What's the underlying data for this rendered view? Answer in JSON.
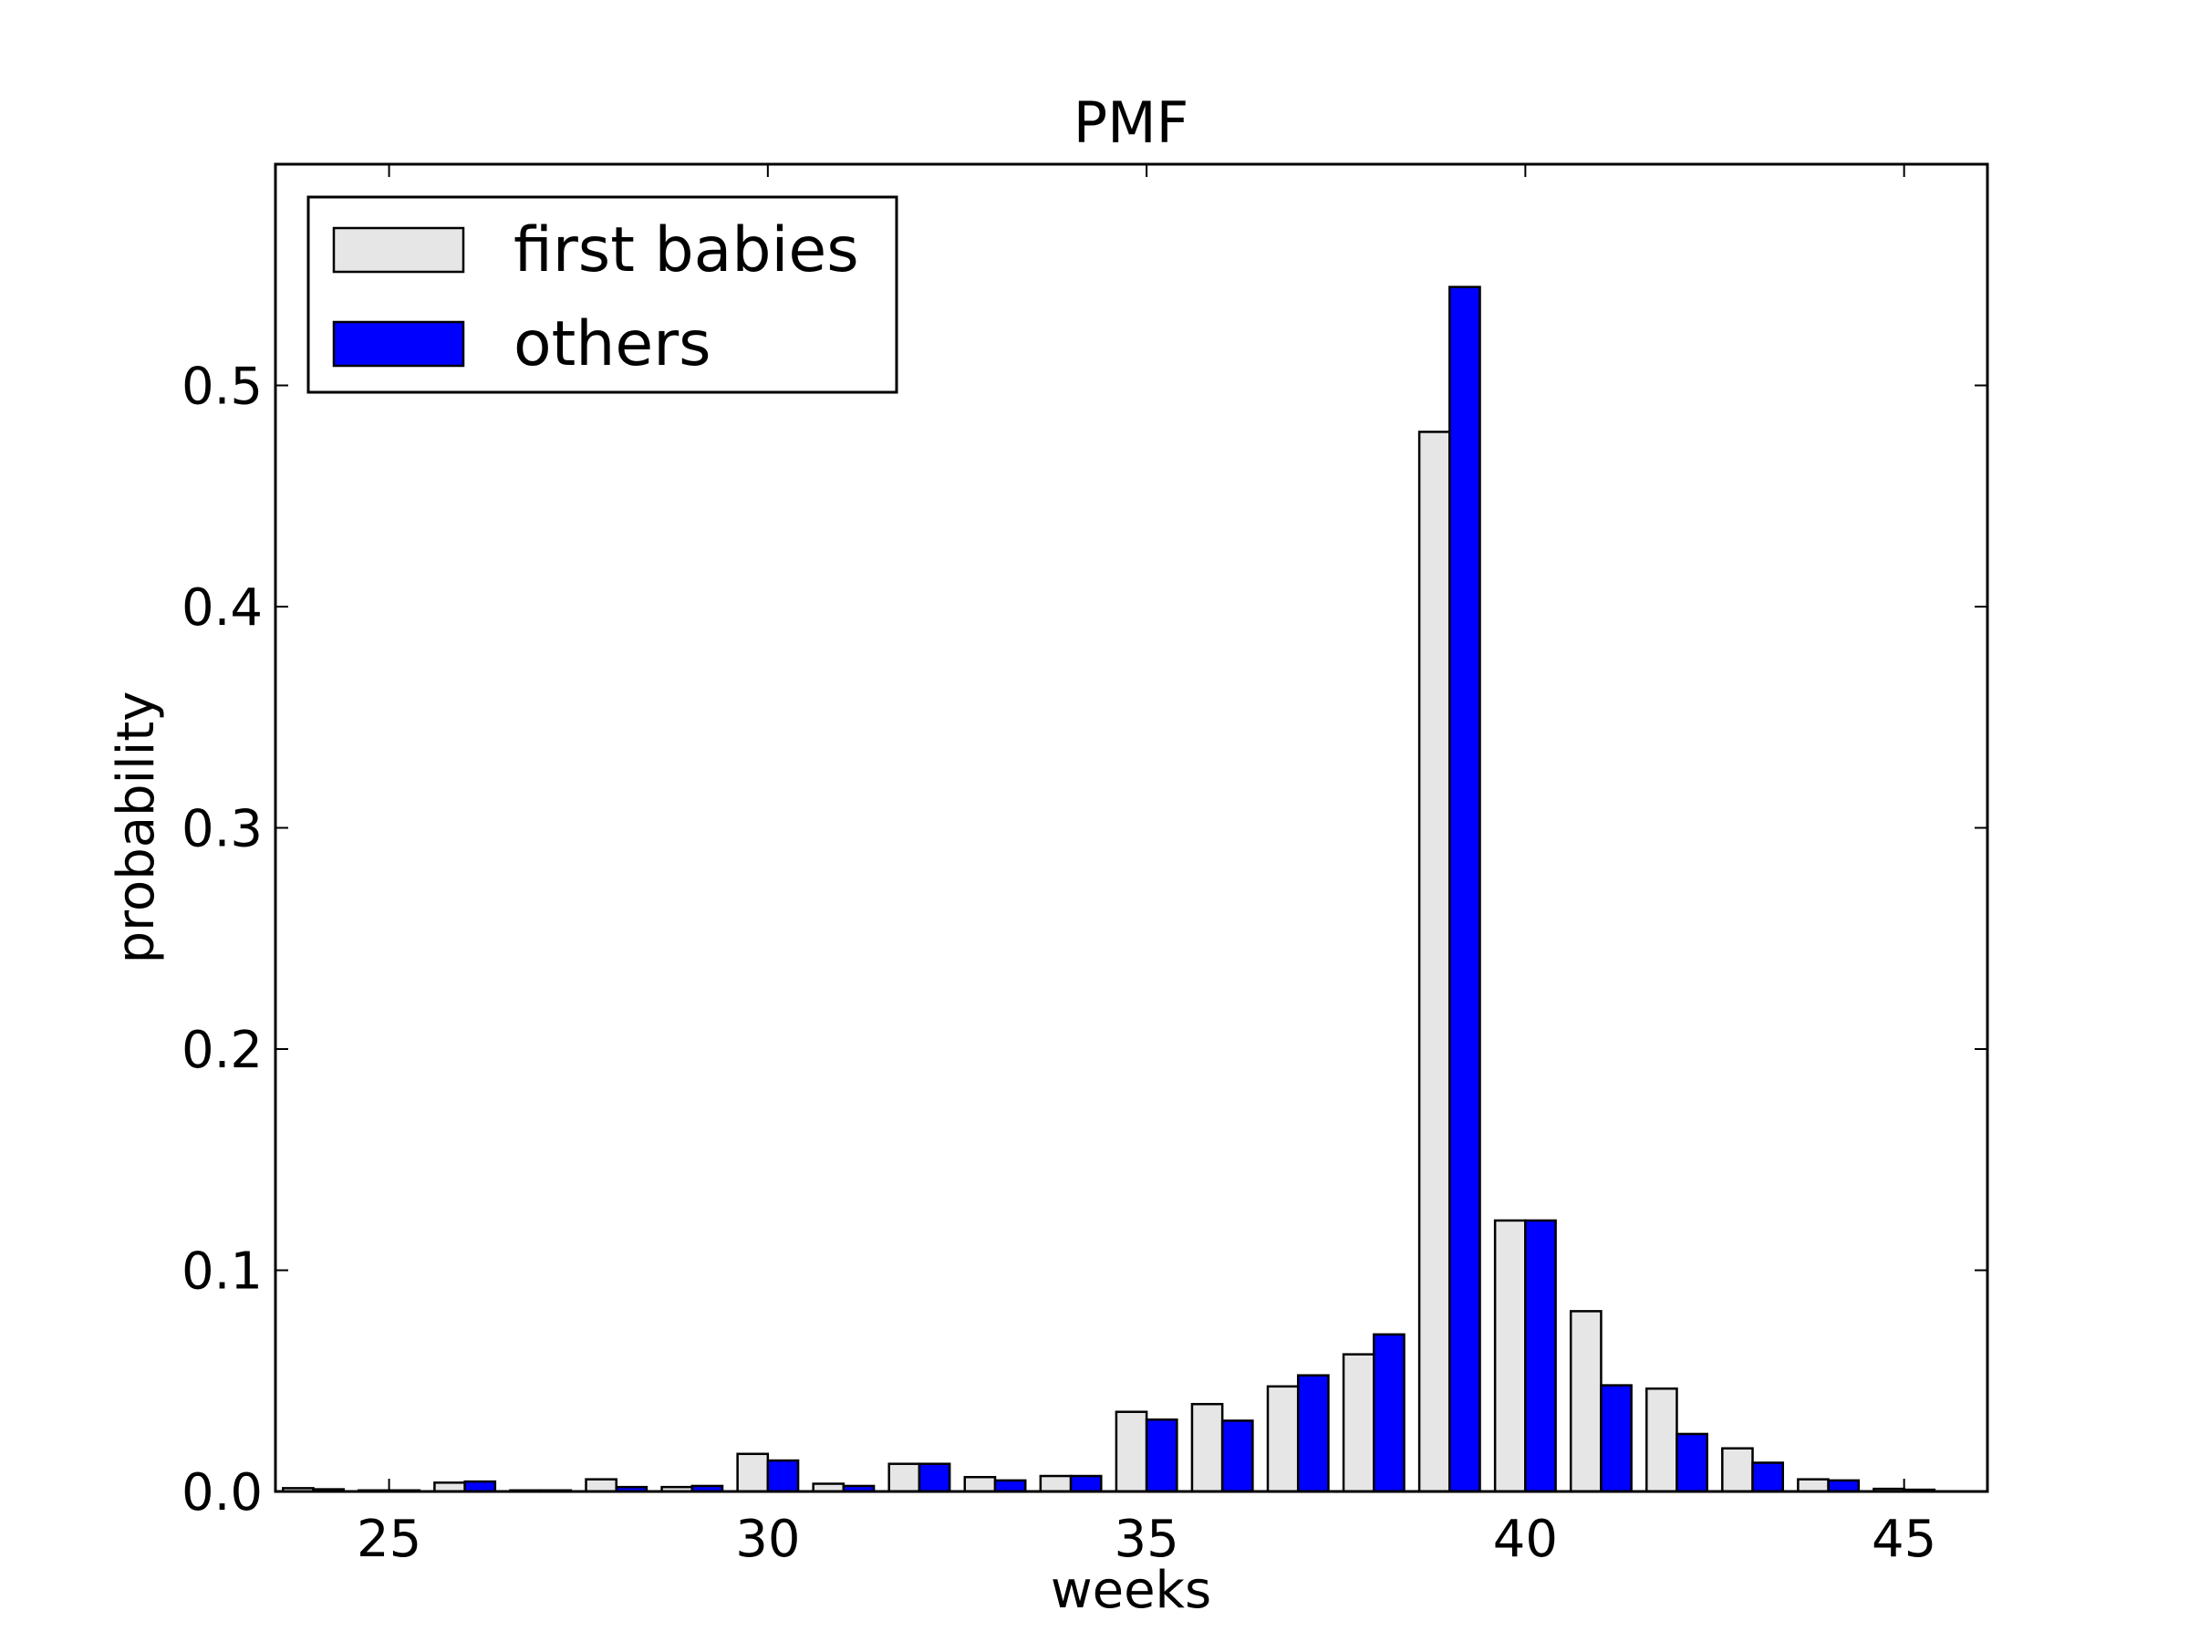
{
  "chart_data": {
    "type": "bar",
    "title": "PMF",
    "xlabel": "weeks",
    "ylabel": "probability",
    "xlim": [
      23.5,
      46.1
    ],
    "ylim": [
      0.0,
      0.6
    ],
    "xticks": [
      25,
      30,
      35,
      40,
      45
    ],
    "yticks": [
      0.0,
      0.1,
      0.2,
      0.3,
      0.4,
      0.5
    ],
    "ytick_labels": [
      "0.0",
      "0.1",
      "0.2",
      "0.3",
      "0.4",
      "0.5"
    ],
    "legend_position": "top-left",
    "grid": false,
    "x": [
      24,
      25,
      26,
      27,
      28,
      29,
      30,
      31,
      32,
      33,
      34,
      35,
      36,
      37,
      38,
      39,
      40,
      41,
      42,
      43,
      44,
      45
    ],
    "series": [
      {
        "name": "first babies",
        "color": "#e6e6e6",
        "values": [
          0.0015,
          0.0005,
          0.004,
          0.0005,
          0.0055,
          0.002,
          0.017,
          0.0035,
          0.0125,
          0.0065,
          0.007,
          0.036,
          0.0395,
          0.0475,
          0.062,
          0.479,
          0.1225,
          0.0815,
          0.0465,
          0.0195,
          0.0055,
          0.0012
        ]
      },
      {
        "name": "others",
        "color": "#0000ff",
        "values": [
          0.001,
          0.0005,
          0.0045,
          0.0005,
          0.002,
          0.0025,
          0.014,
          0.0025,
          0.0125,
          0.005,
          0.007,
          0.0325,
          0.032,
          0.0525,
          0.071,
          0.5445,
          0.1225,
          0.048,
          0.026,
          0.013,
          0.005,
          0.0008
        ]
      }
    ]
  }
}
